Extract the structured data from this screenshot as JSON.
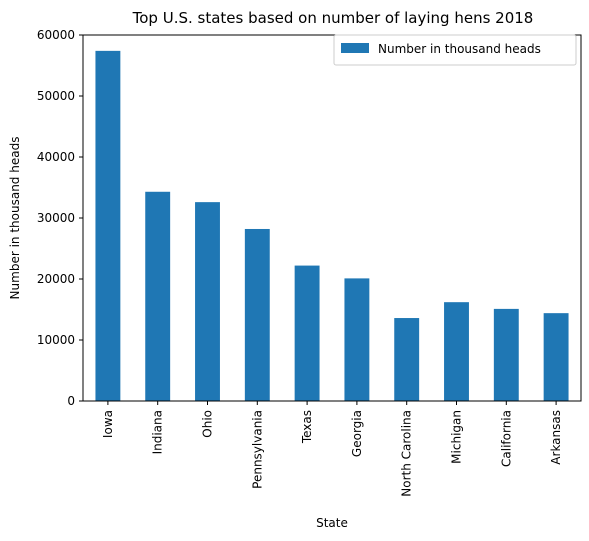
{
  "chart_data": {
    "type": "bar",
    "title": "Top U.S. states based on number of laying hens 2018",
    "xlabel": "State",
    "ylabel": "Number in thousand heads",
    "categories": [
      "Iowa",
      "Indiana",
      "Ohio",
      "Pennsylvania",
      "Texas",
      "Georgia",
      "North Carolina",
      "Michigan",
      "California",
      "Arkansas"
    ],
    "series": [
      {
        "name": "Number in thousand heads",
        "values": [
          57400,
          34300,
          32600,
          28200,
          22200,
          20100,
          13600,
          16200,
          15100,
          14400
        ],
        "color": "#1f77b4"
      }
    ],
    "ylim": [
      0,
      60000
    ],
    "yticks": [
      0,
      10000,
      20000,
      30000,
      40000,
      50000,
      60000
    ],
    "grid": false,
    "legend_position": "top-right"
  }
}
